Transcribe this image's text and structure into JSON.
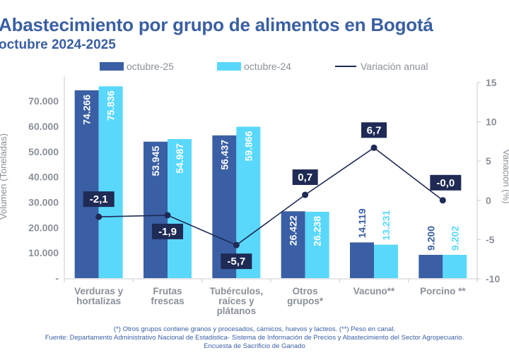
{
  "chart_data": {
    "type": "bar+line",
    "title": "Abastecimiento por grupo de alimentos en Bogotá",
    "subtitle": "octubre 2024-2025",
    "categories": [
      [
        "Verduras y",
        "hortalizas"
      ],
      [
        "Frutas",
        "frescas"
      ],
      [
        "Tubérculos,",
        "raíces y",
        "plátanos"
      ],
      [
        "Otros",
        "grupos*"
      ],
      [
        "Vacuno**"
      ],
      [
        "Porcino **"
      ]
    ],
    "series": [
      {
        "name": "octubre-25",
        "type": "bar",
        "axis": "left",
        "color": "#3a5fa4",
        "values": [
          74266,
          53945,
          56437,
          26422,
          14119,
          9200
        ],
        "labels": [
          "74.266",
          "53.945",
          "56.437",
          "26.422",
          "14.119",
          "9.200"
        ]
      },
      {
        "name": "octubre-24",
        "type": "bar",
        "axis": "left",
        "color": "#5ad8fc",
        "values": [
          75836,
          54987,
          59866,
          26238,
          13231,
          9202
        ],
        "labels": [
          "75.836",
          "54.987",
          "59.866",
          "26.238",
          "13.231",
          "9.202"
        ]
      },
      {
        "name": "Variación anual",
        "type": "line",
        "axis": "right",
        "color": "#1f2a55",
        "values": [
          -2.1,
          -1.9,
          -5.7,
          0.7,
          6.7,
          -0.0
        ],
        "labels": [
          "-2,1",
          "-1,9",
          "-5,7",
          "0,7",
          "6,7",
          "-0,0"
        ]
      }
    ],
    "ylabel": "Volumen (Toneladas)",
    "y2label": "Variación (%)",
    "ylim": [
      0,
      77500
    ],
    "y2lim": [
      -10,
      15
    ],
    "yticks": [
      "-",
      "10.000",
      "20.000",
      "30.000",
      "40.000",
      "50.000",
      "60.000",
      "70.000"
    ],
    "y2ticks": [
      "-10",
      "-5",
      "0",
      "5",
      "10",
      "15"
    ],
    "legend_position": "top-center",
    "grid": false
  },
  "footnotes": [
    "(*) Otros grupos contiene granos y procesados, cárnicos, huevos y lacteos. (**) Peso en canal.",
    "Fuente: Departamento Administrativo Nacional de Estadistica- Sistema de Información de Precios y Abastecimiento del Sector Agropecuario.",
    "Encuesta de  Sacrificio de Ganado"
  ]
}
